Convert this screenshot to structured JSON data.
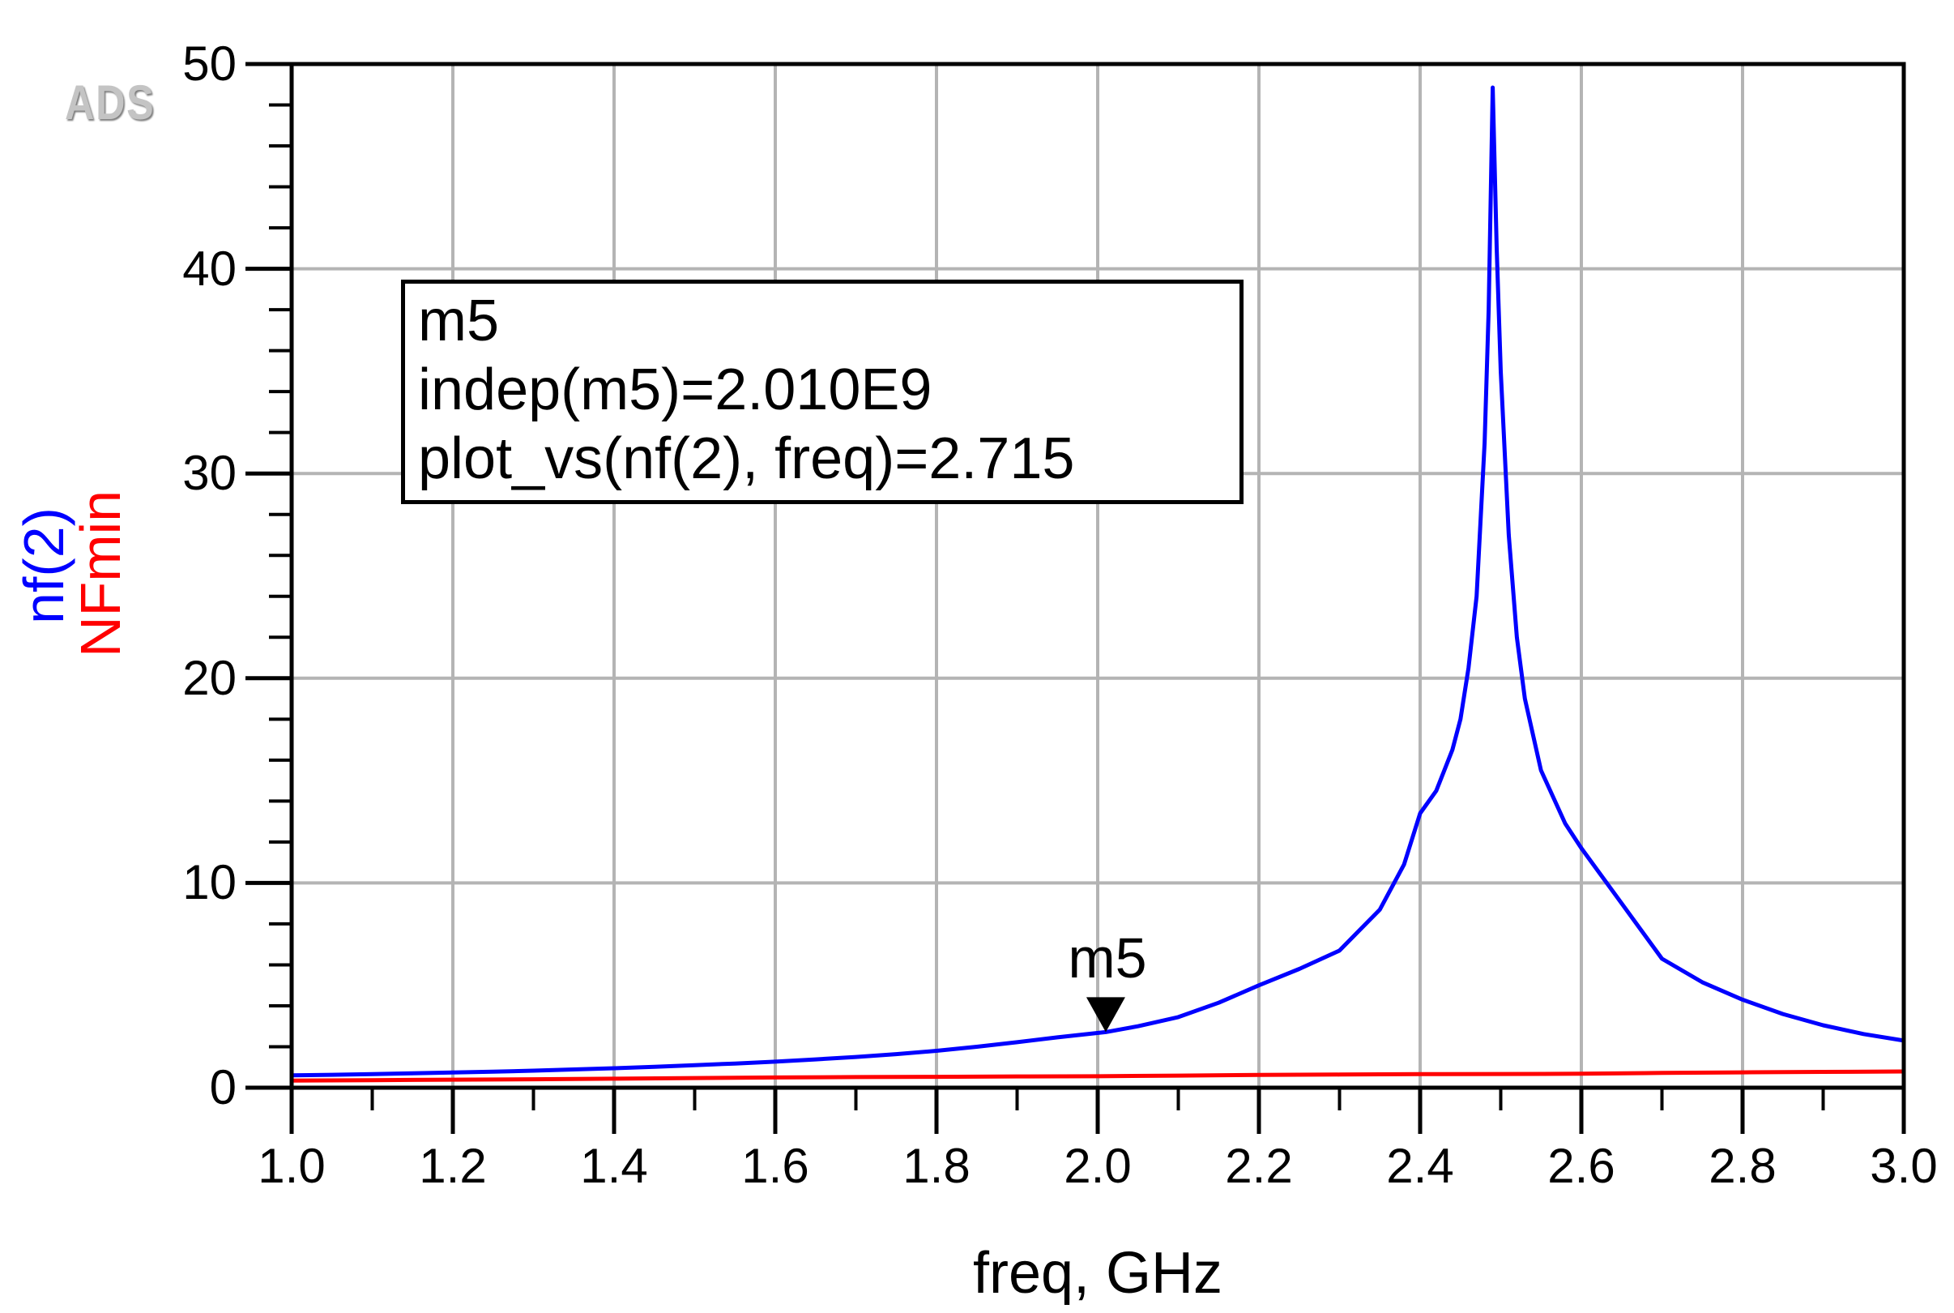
{
  "app": {
    "brand_logo": "ADS"
  },
  "colors": {
    "nf2": "#0000ff",
    "nfmin": "#ff0000",
    "grid": "#b4b4b4",
    "axis": "#000000",
    "marker": "#000000",
    "background": "#ffffff"
  },
  "axes": {
    "x": {
      "title": "freq, GHz",
      "min": 1.0,
      "max": 3.0,
      "major_step": 0.2,
      "minor_step": 0.1,
      "tick_labels": [
        "1.0",
        "1.2",
        "1.4",
        "1.6",
        "1.8",
        "2.0",
        "2.2",
        "2.4",
        "2.6",
        "2.8",
        "3.0"
      ]
    },
    "y": {
      "min": 0,
      "max": 50,
      "major_step": 10,
      "minor_step": 2,
      "tick_labels": [
        "0",
        "10",
        "20",
        "30",
        "40",
        "50"
      ],
      "unit_labels": [
        {
          "text": "nf(2)",
          "color_key": "nf2"
        },
        {
          "text": "NFmin",
          "color_key": "nfmin"
        }
      ]
    }
  },
  "marker": {
    "label": "m5",
    "freq_ghz": 2.01,
    "value": 2.715,
    "box_lines": [
      "m5",
      "indep(m5)=2.010E9",
      "plot_vs(nf(2), freq)=2.715"
    ]
  },
  "chart_data": {
    "type": "line",
    "title": "",
    "xlabel": "freq, GHz",
    "ylabel": "nf(2) / NFmin",
    "xlim": [
      1.0,
      3.0
    ],
    "ylim": [
      0,
      50
    ],
    "grid": true,
    "legend_position": "none",
    "annotations": [
      {
        "id": "m5",
        "x_ghz": 2.01,
        "y": 2.715,
        "text_lines": [
          "m5",
          "indep(m5)=2.010E9",
          "plot_vs(nf(2), freq)=2.715"
        ]
      }
    ],
    "series": [
      {
        "name": "nf(2)",
        "color": "#0000ff",
        "points": [
          [
            1.0,
            0.6
          ],
          [
            1.05,
            0.63
          ],
          [
            1.1,
            0.66
          ],
          [
            1.15,
            0.7
          ],
          [
            1.2,
            0.74
          ],
          [
            1.25,
            0.78
          ],
          [
            1.3,
            0.83
          ],
          [
            1.35,
            0.89
          ],
          [
            1.4,
            0.95
          ],
          [
            1.45,
            1.02
          ],
          [
            1.5,
            1.1
          ],
          [
            1.55,
            1.18
          ],
          [
            1.6,
            1.27
          ],
          [
            1.65,
            1.38
          ],
          [
            1.7,
            1.5
          ],
          [
            1.75,
            1.64
          ],
          [
            1.8,
            1.8
          ],
          [
            1.85,
            2.0
          ],
          [
            1.9,
            2.22
          ],
          [
            1.95,
            2.46
          ],
          [
            2.01,
            2.715
          ],
          [
            2.05,
            3.0
          ],
          [
            2.1,
            3.45
          ],
          [
            2.15,
            4.15
          ],
          [
            2.2,
            5.0
          ],
          [
            2.25,
            5.8
          ],
          [
            2.3,
            6.7
          ],
          [
            2.35,
            8.7
          ],
          [
            2.38,
            10.9
          ],
          [
            2.4,
            13.4
          ],
          [
            2.42,
            14.5
          ],
          [
            2.44,
            16.5
          ],
          [
            2.45,
            18.0
          ],
          [
            2.46,
            20.5
          ],
          [
            2.47,
            24.0
          ],
          [
            2.48,
            31.5
          ],
          [
            2.485,
            38.0
          ],
          [
            2.49,
            48.85
          ],
          [
            2.495,
            41.0
          ],
          [
            2.5,
            35.0
          ],
          [
            2.51,
            27.0
          ],
          [
            2.52,
            22.0
          ],
          [
            2.53,
            19.0
          ],
          [
            2.55,
            15.5
          ],
          [
            2.58,
            12.9
          ],
          [
            2.6,
            11.7
          ],
          [
            2.65,
            9.0
          ],
          [
            2.7,
            6.3
          ],
          [
            2.75,
            5.15
          ],
          [
            2.8,
            4.3
          ],
          [
            2.85,
            3.6
          ],
          [
            2.9,
            3.05
          ],
          [
            2.95,
            2.62
          ],
          [
            3.0,
            2.3
          ]
        ]
      },
      {
        "name": "NFmin",
        "color": "#ff0000",
        "points": [
          [
            1.0,
            0.35
          ],
          [
            1.1,
            0.37
          ],
          [
            1.2,
            0.39
          ],
          [
            1.3,
            0.41
          ],
          [
            1.4,
            0.44
          ],
          [
            1.5,
            0.47
          ],
          [
            1.6,
            0.5
          ],
          [
            1.7,
            0.52
          ],
          [
            1.8,
            0.53
          ],
          [
            1.9,
            0.55
          ],
          [
            2.0,
            0.56
          ],
          [
            2.1,
            0.59
          ],
          [
            2.2,
            0.62
          ],
          [
            2.3,
            0.64
          ],
          [
            2.4,
            0.66
          ],
          [
            2.5,
            0.67
          ],
          [
            2.6,
            0.68
          ],
          [
            2.7,
            0.72
          ],
          [
            2.8,
            0.75
          ],
          [
            2.9,
            0.77
          ],
          [
            3.0,
            0.79
          ]
        ]
      }
    ]
  }
}
